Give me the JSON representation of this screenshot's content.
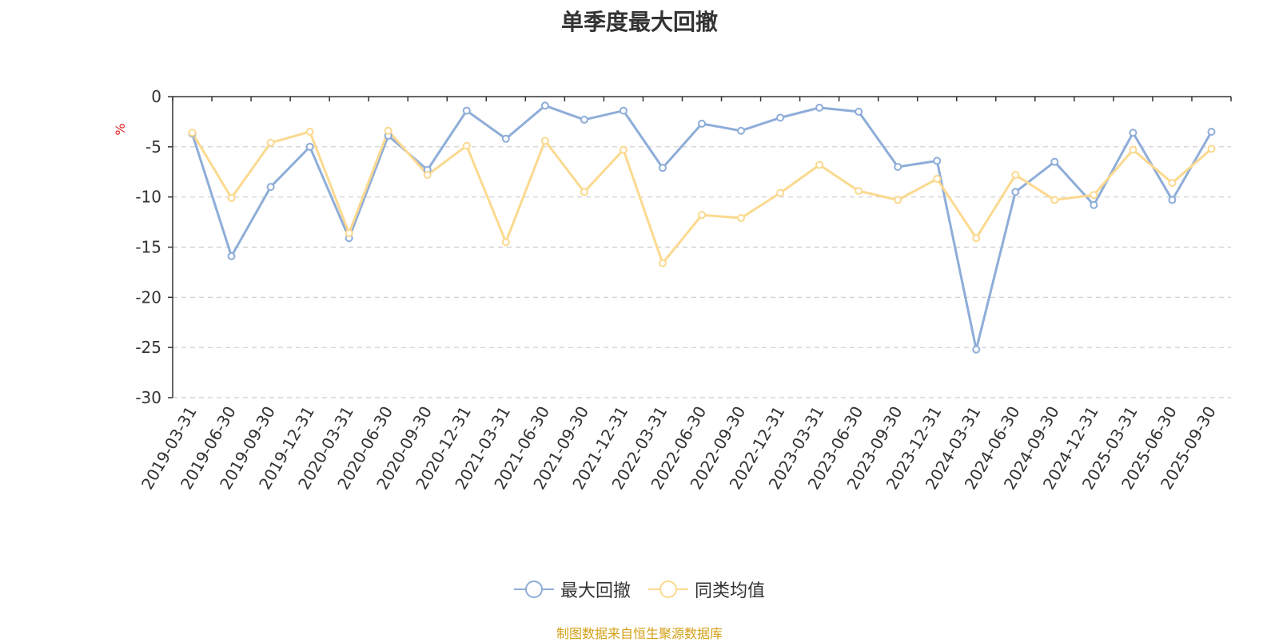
{
  "chart_data": {
    "type": "line",
    "title": "单季度最大回撤",
    "ylabel": "%",
    "ylim": [
      -30,
      0
    ],
    "yticks": [
      0,
      -5,
      -10,
      -15,
      -20,
      -25,
      -30
    ],
    "grid": true,
    "legend_position": "bottom-center",
    "categories": [
      "2019-03-31",
      "2019-06-30",
      "2019-09-30",
      "2019-12-31",
      "2020-03-31",
      "2020-06-30",
      "2020-09-30",
      "2020-12-31",
      "2021-03-31",
      "2021-06-30",
      "2021-09-30",
      "2021-12-31",
      "2022-03-31",
      "2022-06-30",
      "2022-09-30",
      "2022-12-31",
      "2023-03-31",
      "2023-06-30",
      "2023-09-30",
      "2023-12-31",
      "2024-03-31",
      "2024-06-30",
      "2024-09-30",
      "2024-12-31",
      "2025-03-31",
      "2025-06-30",
      "2025-09-30"
    ],
    "series": [
      {
        "name": "最大回撤",
        "color": "#8eadd8",
        "values": [
          -3.7,
          -15.9,
          -9.0,
          -5.0,
          -14.1,
          -3.9,
          -7.3,
          -1.4,
          -4.2,
          -0.9,
          -2.3,
          -1.4,
          -7.1,
          -2.7,
          -3.4,
          -2.1,
          -1.1,
          -1.5,
          -7.0,
          -6.4,
          -25.2,
          -9.5,
          -6.5,
          -10.8,
          -3.6,
          -10.3,
          -3.5
        ]
      },
      {
        "name": "同类均值",
        "color": "#fbd98f",
        "values": [
          -3.6,
          -10.1,
          -4.6,
          -3.5,
          -13.6,
          -3.4,
          -7.8,
          -4.9,
          -14.5,
          -4.4,
          -9.5,
          -5.3,
          -16.6,
          -11.8,
          -12.1,
          -9.6,
          -6.8,
          -9.4,
          -10.3,
          -8.2,
          -14.1,
          -7.8,
          -10.3,
          -9.8,
          -5.3,
          -8.6,
          -5.2
        ]
      }
    ]
  },
  "legend": {
    "items": [
      {
        "label": "最大回撤",
        "color": "#8eadd8"
      },
      {
        "label": "同类均值",
        "color": "#fbd98f"
      }
    ]
  },
  "footer": {
    "source": "制图数据来自恒生聚源数据库"
  }
}
